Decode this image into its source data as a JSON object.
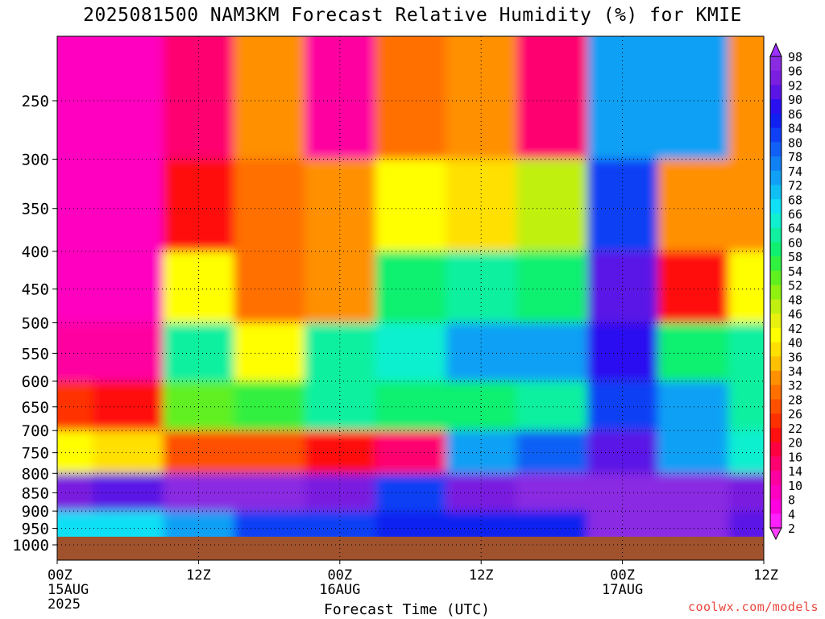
{
  "chart_data": {
    "type": "heatmap",
    "title": "2025081500 NAM3KM Forecast Relative Humidity (%) for KMIE",
    "xlabel": "Forecast Time (UTC)",
    "ylabel": "",
    "x_ticks": [
      {
        "hour": 0,
        "label": "00Z",
        "sub": [
          "15AUG",
          "2025"
        ]
      },
      {
        "hour": 12,
        "label": "12Z",
        "sub": []
      },
      {
        "hour": 24,
        "label": "00Z",
        "sub": [
          "16AUG"
        ]
      },
      {
        "hour": 36,
        "label": "12Z",
        "sub": []
      },
      {
        "hour": 48,
        "label": "00Z",
        "sub": [
          "17AUG"
        ]
      },
      {
        "hour": 60,
        "label": "12Z",
        "sub": []
      }
    ],
    "xlim": [
      0,
      60
    ],
    "y_ticks": [
      250,
      300,
      350,
      400,
      450,
      500,
      550,
      600,
      650,
      700,
      750,
      800,
      850,
      900,
      950,
      1000
    ],
    "ylim_hpa": [
      1000,
      200
    ],
    "ground_level_hpa": 975,
    "colorbar_levels": [
      98,
      96,
      92,
      90,
      86,
      84,
      80,
      78,
      74,
      72,
      68,
      66,
      64,
      60,
      58,
      54,
      52,
      48,
      46,
      42,
      40,
      36,
      34,
      32,
      28,
      26,
      22,
      20,
      16,
      14,
      10,
      8,
      4,
      2
    ],
    "colorbar_colors": [
      "#8a2be2",
      "#7a1ee0",
      "#5a14e6",
      "#2a10f0",
      "#1020f0",
      "#1040f5",
      "#1060f5",
      "#1080f5",
      "#10a0f5",
      "#10c0f5",
      "#10e0f5",
      "#10f0d0",
      "#10f0a0",
      "#10f070",
      "#30f040",
      "#60f020",
      "#90f010",
      "#c0f010",
      "#e8f010",
      "#ffff00",
      "#ffe000",
      "#ffc000",
      "#ff9000",
      "#ff7000",
      "#ff5000",
      "#ff3000",
      "#ff1010",
      "#ff0040",
      "#ff0070",
      "#ff00a0",
      "#ff00c0",
      "#ff00e0",
      "#ff20ff"
    ],
    "grid": true,
    "legend": "right colorbar",
    "rh_grid": {
      "times_h": [
        0,
        6,
        12,
        18,
        24,
        30,
        36,
        42,
        48,
        54,
        60
      ],
      "levels_hpa": [
        250,
        350,
        450,
        550,
        650,
        750,
        850,
        950
      ],
      "rh_pct": [
        [
          8,
          8,
          12,
          30,
          10,
          28,
          32,
          12,
          70,
          70,
          30
        ],
        [
          6,
          8,
          18,
          28,
          30,
          40,
          36,
          46,
          80,
          30,
          30
        ],
        [
          6,
          8,
          40,
          28,
          30,
          56,
          60,
          56,
          90,
          20,
          40
        ],
        [
          10,
          10,
          60,
          40,
          60,
          64,
          70,
          70,
          86,
          56,
          60
        ],
        [
          22,
          20,
          50,
          54,
          60,
          56,
          56,
          60,
          80,
          70,
          60
        ],
        [
          40,
          36,
          26,
          24,
          20,
          14,
          70,
          76,
          90,
          70,
          64
        ],
        [
          92,
          90,
          96,
          96,
          92,
          80,
          92,
          96,
          96,
          94,
          92
        ],
        [
          66,
          66,
          70,
          80,
          80,
          84,
          84,
          84,
          96,
          96,
          90
        ]
      ]
    },
    "watermark": "coolwx.com/models"
  }
}
